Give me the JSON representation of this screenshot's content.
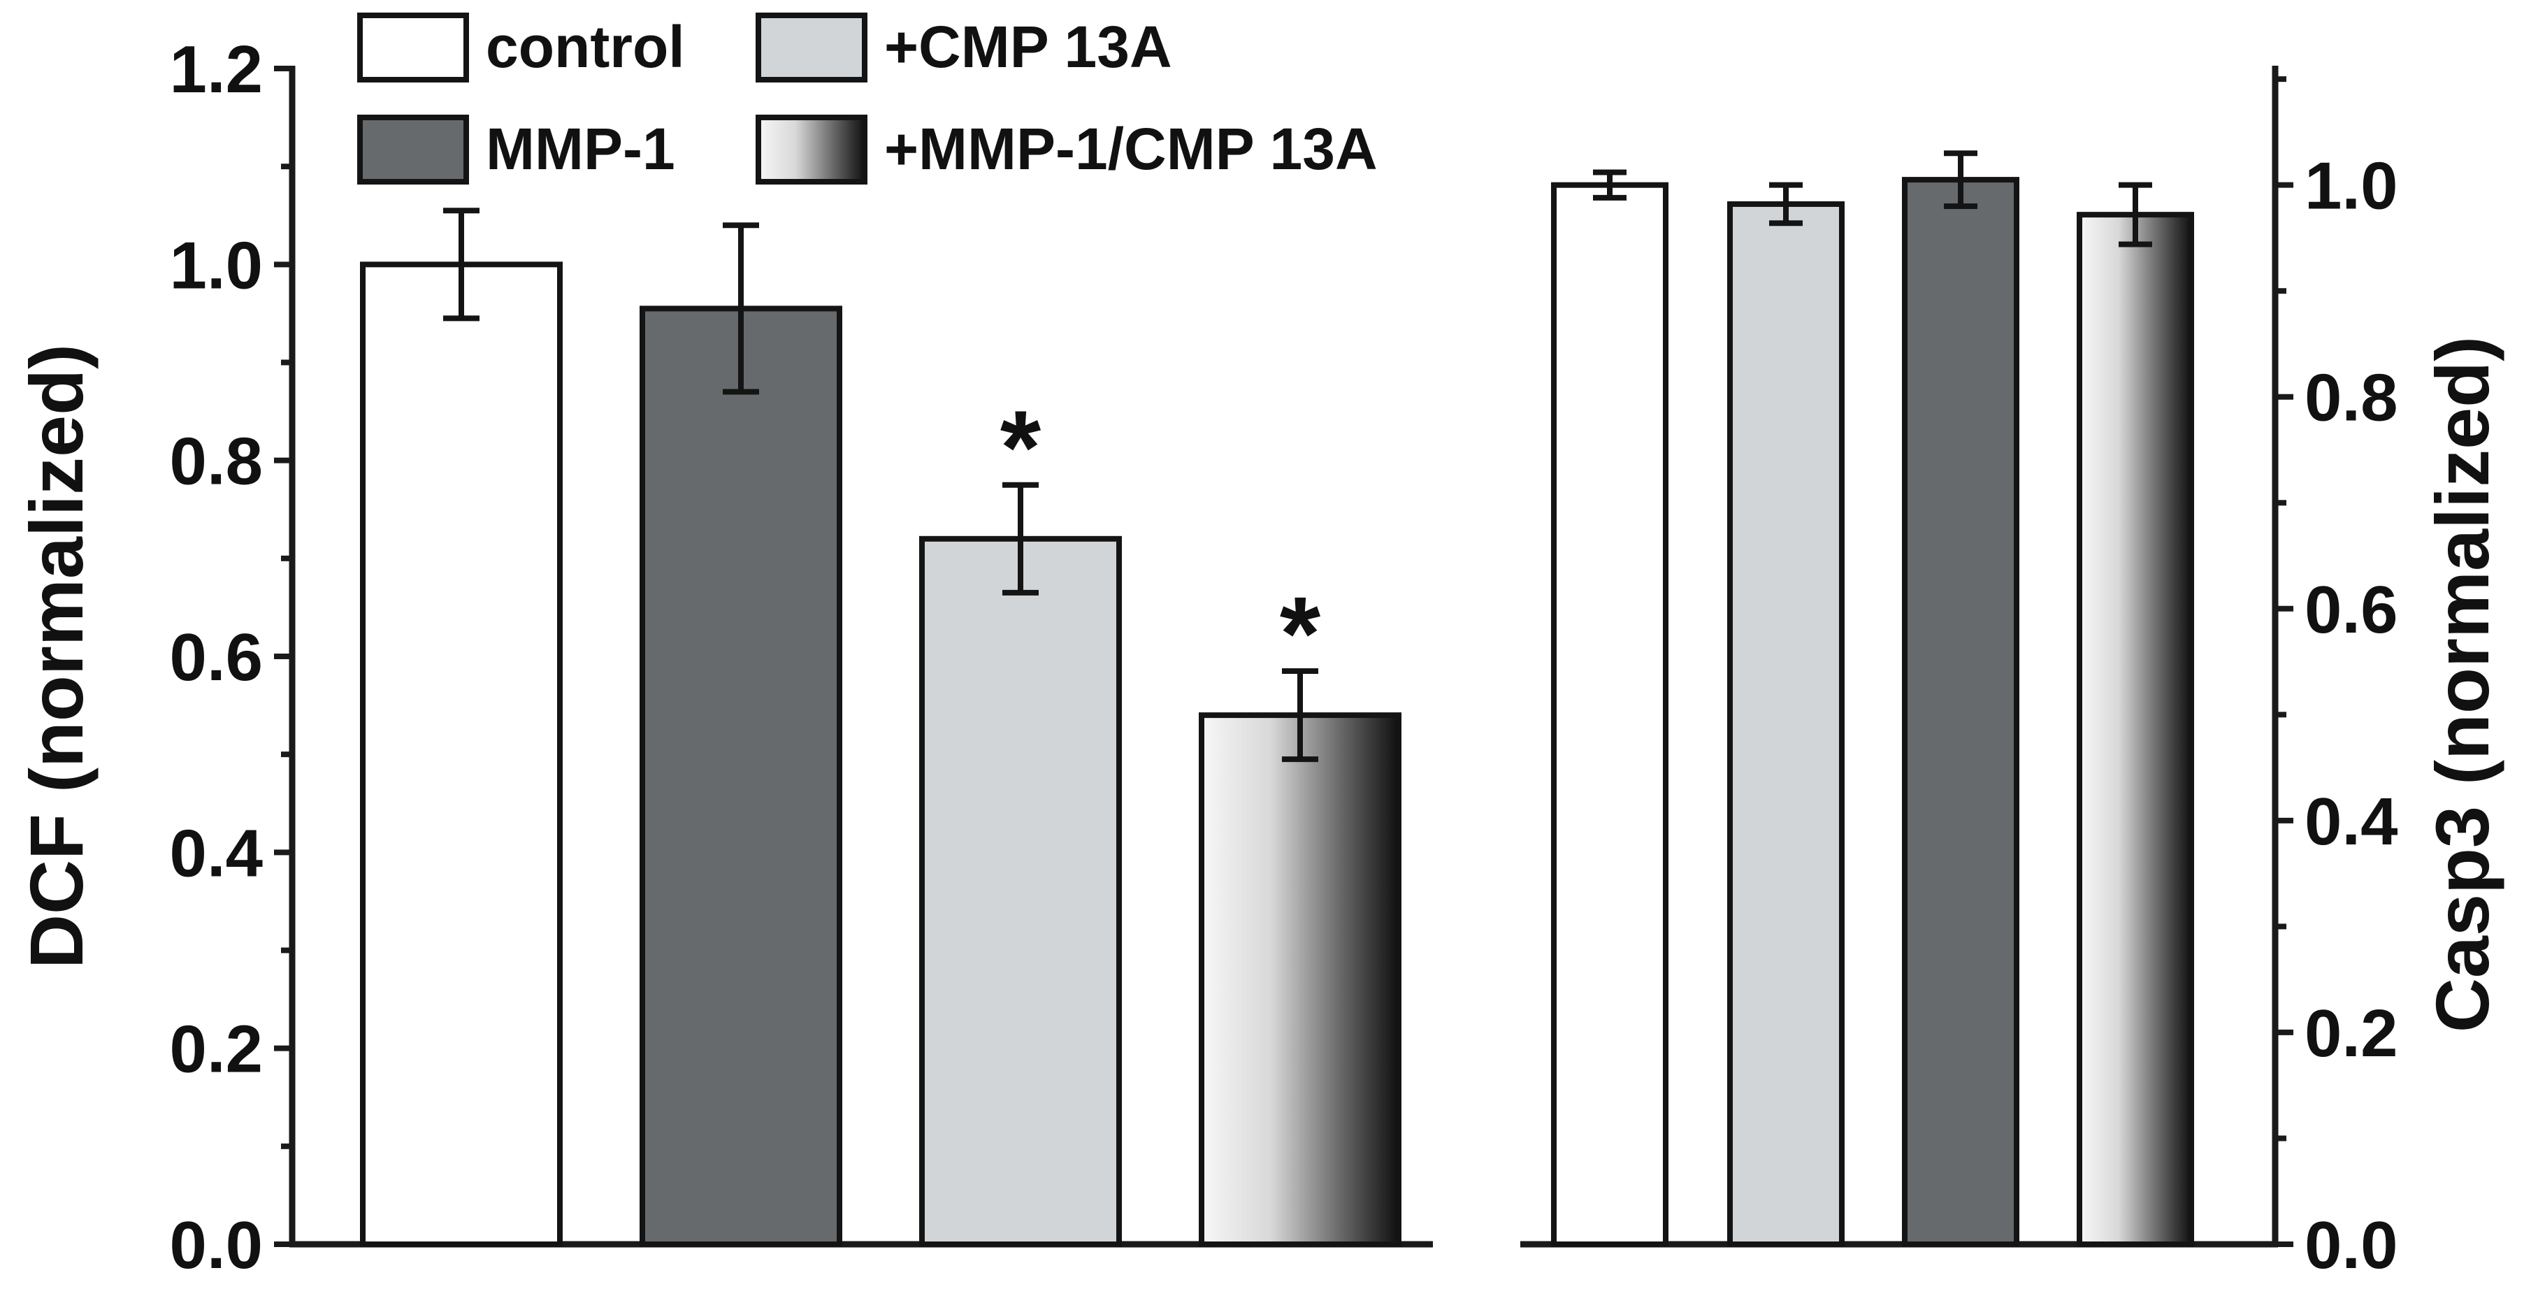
{
  "chart_data": [
    {
      "type": "bar",
      "ylabel": "DCF (normalized)",
      "ylim": [
        0,
        1.2
      ],
      "yticks": [
        "0.0",
        "0.2",
        "0.4",
        "0.6",
        "0.8",
        "1.0",
        "1.2"
      ],
      "bars": [
        {
          "name": "control",
          "value": 1.0,
          "error": 0.055,
          "color": "#ffffff",
          "significance": ""
        },
        {
          "name": "MMP-1",
          "value": 0.955,
          "error": 0.085,
          "color": "#676a6c",
          "significance": ""
        },
        {
          "name": "+CMP 13A",
          "value": 0.72,
          "error": 0.055,
          "color": "#d2d5d8",
          "significance": "*"
        },
        {
          "name": "+MMP-1/CMP 13A",
          "value": 0.54,
          "error": 0.045,
          "color": "gradient",
          "significance": "*"
        }
      ]
    },
    {
      "type": "bar",
      "ylabel": "Casp3 (normalized)",
      "ylim": [
        0,
        1.1
      ],
      "yticks": [
        "0.0",
        "0.2",
        "0.4",
        "0.6",
        "0.8",
        "1.0"
      ],
      "bars": [
        {
          "name": "control",
          "value": 1.0,
          "error": 0.012,
          "color": "#ffffff"
        },
        {
          "name": "+CMP 13A",
          "value": 0.982,
          "error": 0.018,
          "color": "#d2d5d8"
        },
        {
          "name": "MMP-1",
          "value": 1.005,
          "error": 0.025,
          "color": "#676a6c"
        },
        {
          "name": "+MMP-1/CMP 13A",
          "value": 0.972,
          "error": 0.028,
          "color": "gradient"
        }
      ]
    }
  ],
  "legend": [
    {
      "label": "control",
      "color": "#ffffff"
    },
    {
      "label": "+CMP 13A",
      "color": "#d2d5d8"
    },
    {
      "label": "MMP-1",
      "color": "#676a6c"
    },
    {
      "label": "+MMP-1/CMP 13A",
      "color": "gradient"
    }
  ],
  "colors": {
    "gradient_start": "#f7f7f7",
    "gradient_end": "#101010",
    "axis": "#1a1a1a"
  }
}
